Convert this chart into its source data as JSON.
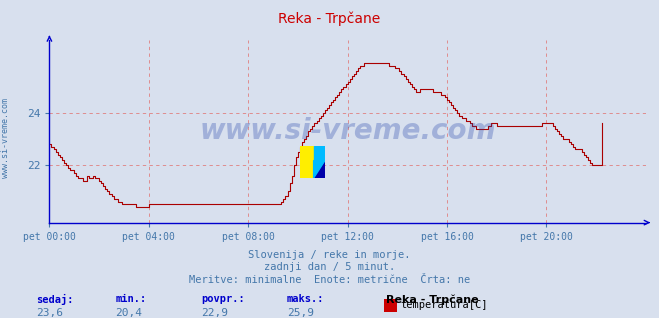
{
  "title": "Reka - Trpčane",
  "bg_color": "#d8e0ee",
  "plot_bg_color": "#d8e0ee",
  "line_color": "#aa0000",
  "grid_color": "#e08080",
  "axis_color": "#0000cc",
  "text_color": "#4477aa",
  "ylabel_left": "www.si-vreme.com",
  "x_labels": [
    "pet 00:00",
    "pet 04:00",
    "pet 08:00",
    "pet 12:00",
    "pet 16:00",
    "pet 20:00"
  ],
  "x_ticks": [
    0,
    48,
    96,
    144,
    192,
    240
  ],
  "y_ticks": [
    22,
    24
  ],
  "ylim": [
    19.8,
    26.8
  ],
  "xlim": [
    0,
    288
  ],
  "subtitle1": "Slovenija / reke in morje.",
  "subtitle2": "zadnji dan / 5 minut.",
  "subtitle3": "Meritve: minimalne  Enote: metrične  Črta: ne",
  "stat_labels": [
    "sedaj:",
    "min.:",
    "povpr.:",
    "maks.:"
  ],
  "stat_values": [
    "23,6",
    "20,4",
    "22,9",
    "25,9"
  ],
  "legend_name": "Reka - Trpčane",
  "legend_unit": "temperatura[C]",
  "watermark": "www.si-vreme.com",
  "temperature_data": [
    22.8,
    22.7,
    22.6,
    22.5,
    22.4,
    22.3,
    22.2,
    22.1,
    22.0,
    21.9,
    21.8,
    21.8,
    21.7,
    21.6,
    21.5,
    21.5,
    21.4,
    21.4,
    21.6,
    21.5,
    21.5,
    21.6,
    21.5,
    21.5,
    21.4,
    21.3,
    21.2,
    21.1,
    21.0,
    20.9,
    20.8,
    20.7,
    20.7,
    20.6,
    20.6,
    20.5,
    20.5,
    20.5,
    20.5,
    20.5,
    20.5,
    20.5,
    20.4,
    20.4,
    20.4,
    20.4,
    20.4,
    20.4,
    20.5,
    20.5,
    20.5,
    20.5,
    20.5,
    20.5,
    20.5,
    20.5,
    20.5,
    20.5,
    20.5,
    20.5,
    20.5,
    20.5,
    20.5,
    20.5,
    20.5,
    20.5,
    20.5,
    20.5,
    20.5,
    20.5,
    20.5,
    20.5,
    20.5,
    20.5,
    20.5,
    20.5,
    20.5,
    20.5,
    20.5,
    20.5,
    20.5,
    20.5,
    20.5,
    20.5,
    20.5,
    20.5,
    20.5,
    20.5,
    20.5,
    20.5,
    20.5,
    20.5,
    20.5,
    20.5,
    20.5,
    20.5,
    20.5,
    20.5,
    20.5,
    20.5,
    20.5,
    20.5,
    20.5,
    20.5,
    20.5,
    20.5,
    20.5,
    20.5,
    20.5,
    20.5,
    20.5,
    20.5,
    20.6,
    20.7,
    20.8,
    21.0,
    21.3,
    21.6,
    22.0,
    22.3,
    22.5,
    22.7,
    22.9,
    23.0,
    23.1,
    23.3,
    23.4,
    23.5,
    23.6,
    23.7,
    23.8,
    23.9,
    24.0,
    24.1,
    24.2,
    24.3,
    24.4,
    24.5,
    24.6,
    24.7,
    24.8,
    24.9,
    25.0,
    25.1,
    25.2,
    25.3,
    25.4,
    25.5,
    25.6,
    25.7,
    25.8,
    25.8,
    25.9,
    25.9,
    25.9,
    25.9,
    25.9,
    25.9,
    25.9,
    25.9,
    25.9,
    25.9,
    25.9,
    25.9,
    25.8,
    25.8,
    25.8,
    25.7,
    25.7,
    25.6,
    25.5,
    25.4,
    25.3,
    25.2,
    25.1,
    25.0,
    24.9,
    24.8,
    24.8,
    24.9,
    24.9,
    24.9,
    24.9,
    24.9,
    24.9,
    24.8,
    24.8,
    24.8,
    24.8,
    24.7,
    24.7,
    24.6,
    24.5,
    24.4,
    24.3,
    24.2,
    24.1,
    24.0,
    23.9,
    23.8,
    23.8,
    23.7,
    23.7,
    23.6,
    23.5,
    23.5,
    23.4,
    23.4,
    23.4,
    23.4,
    23.4,
    23.4,
    23.5,
    23.6,
    23.6,
    23.6,
    23.5,
    23.5,
    23.5,
    23.5,
    23.5,
    23.5,
    23.5,
    23.5,
    23.5,
    23.5,
    23.5,
    23.5,
    23.5,
    23.5,
    23.5,
    23.5,
    23.5,
    23.5,
    23.5,
    23.5,
    23.5,
    23.5,
    23.6,
    23.6,
    23.6,
    23.6,
    23.6,
    23.5,
    23.4,
    23.3,
    23.2,
    23.1,
    23.0,
    23.0,
    23.0,
    22.9,
    22.8,
    22.7,
    22.6,
    22.6,
    22.6,
    22.5,
    22.4,
    22.3,
    22.2,
    22.1,
    22.0,
    22.0,
    22.0,
    22.0,
    22.0,
    23.6
  ]
}
